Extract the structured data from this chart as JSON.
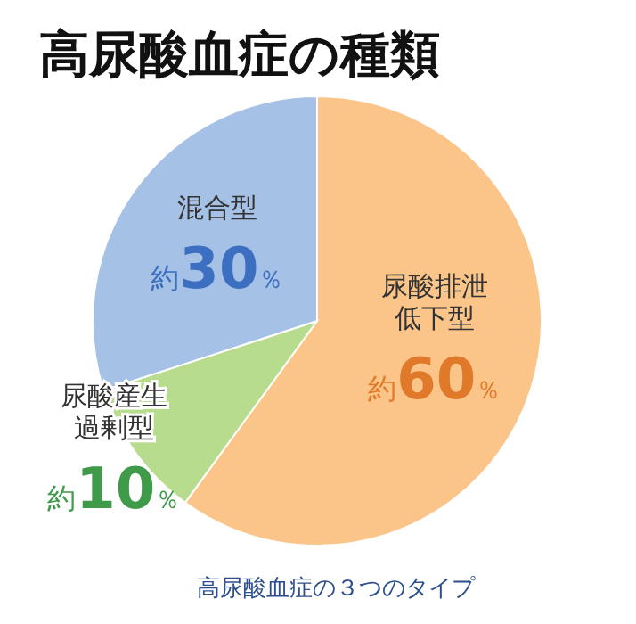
{
  "chart_data": {
    "type": "pie",
    "title": "高尿酸血症の種類",
    "categories": [
      "尿酸排泄低下型",
      "尿酸産生過剰型",
      "混合型"
    ],
    "values": [
      60,
      10,
      30
    ],
    "colors": [
      "#fbc58a",
      "#b8dc8e",
      "#a6c1e6"
    ],
    "value_labels": [
      "約60％",
      "約10％",
      "約30％"
    ],
    "annotations": [
      "高尿酸血症の３つのタイプ"
    ]
  }
}
